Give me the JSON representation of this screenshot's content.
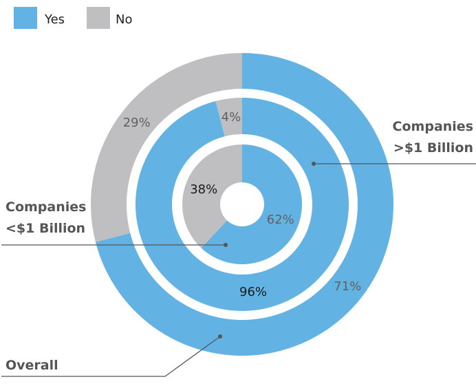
{
  "colors": {
    "yes": "#62b3e3",
    "no": "#bfbfc1",
    "label_dark": "#1a1a1a",
    "label_gray": "#606060",
    "leader": "#555555"
  },
  "legend": [
    {
      "label": "Yes",
      "color": "#62b3e3"
    },
    {
      "label": "No",
      "color": "#bfbfc1"
    }
  ],
  "chart_data": {
    "type": "pie",
    "variant": "nested-donut",
    "categories": [
      "Yes",
      "No"
    ],
    "legend_position": "top-left",
    "series": [
      {
        "callout": "Overall",
        "values": [
          71,
          29
        ],
        "labels": [
          "71%",
          "29%"
        ]
      },
      {
        "callout": [
          "Companies",
          ">$1 Billion"
        ],
        "values": [
          96,
          4
        ],
        "labels": [
          "96%",
          "4%"
        ]
      },
      {
        "callout": [
          "Companies",
          "<$1 Billion"
        ],
        "values": [
          62,
          38
        ],
        "labels": [
          "62%",
          "38%"
        ]
      }
    ]
  }
}
